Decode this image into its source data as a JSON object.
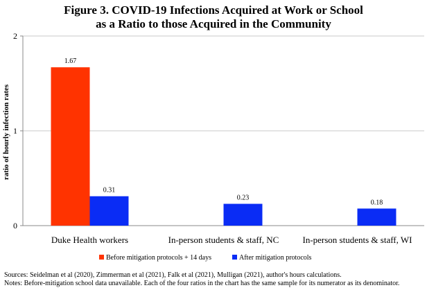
{
  "chart_data": {
    "type": "bar",
    "title_line1": "Figure 3.  COVID-19 Infections Acquired at Work or School",
    "title_line2": "as a Ratio to those Acquired in the Community",
    "xlabel": "",
    "ylabel": "ratio of hourly infection rates",
    "ylim": [
      0,
      2
    ],
    "yticks": [
      0,
      1,
      2
    ],
    "grid": true,
    "legend_position": "bottom",
    "categories": [
      "Duke Health workers",
      "In-person students & staff, NC",
      "In-person students & staff, WI"
    ],
    "series": [
      {
        "name": "Before mitigation protocols + 14 days",
        "color": "#ff3300",
        "values": [
          1.67,
          null,
          null
        ],
        "labels": [
          "1.67",
          "",
          ""
        ]
      },
      {
        "name": "After mitigation protocols",
        "color": "#0a2cf5",
        "values": [
          0.31,
          0.23,
          0.18
        ],
        "labels": [
          "0.31",
          "0.23",
          "0.18"
        ]
      }
    ]
  },
  "notes": {
    "sources": "Sources: Seidelman et al (2020), Zimmerman et al (2021), Falk et al (2021), Mulligan (2021), author's hours calculations.",
    "line2": "Notes: Before-mitigation school data unavailable.  Each of the four ratios in the chart has the same sample for its numerator as its denominator."
  }
}
